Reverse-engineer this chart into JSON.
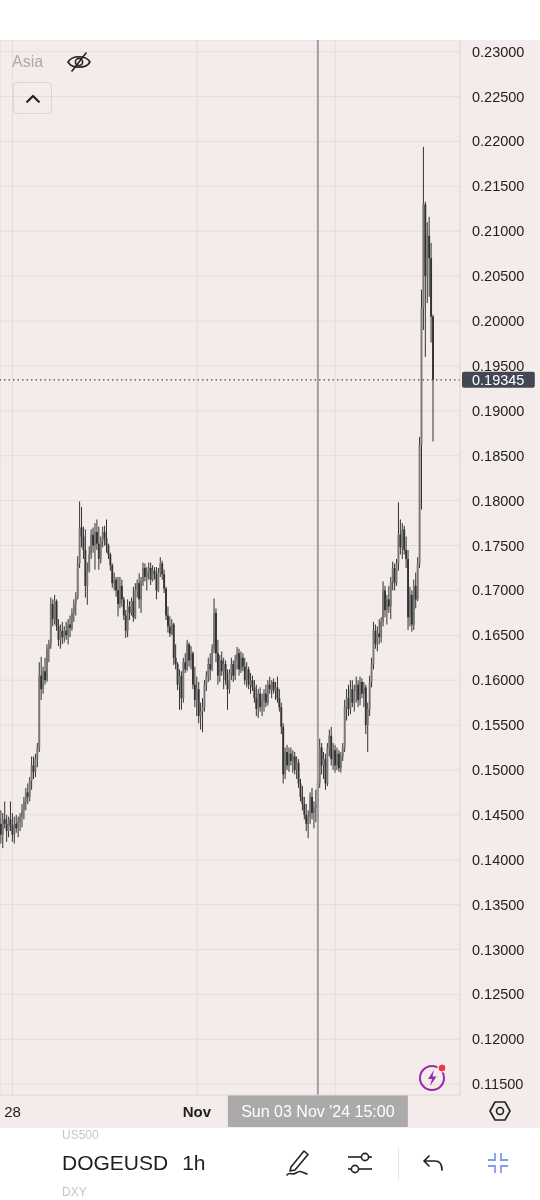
{
  "chart_data": {
    "type": "candlestick",
    "title": "DOGEUSD",
    "subtitle": "1h",
    "annotations": [
      "Asia",
      "US500",
      "DXY"
    ],
    "color": "#333333",
    "x": [
      "2024-10-27T18:00",
      "2024-10-27T19:00",
      "2024-10-27T20:00",
      "2024-10-27T21:00",
      "2024-10-27T22:00",
      "2024-10-27T23:00",
      "2024-10-28T00:00",
      "2024-10-28T01:00",
      "2024-10-28T02:00",
      "2024-10-28T03:00",
      "2024-10-28T04:00",
      "2024-10-28T05:00",
      "2024-10-28T06:00",
      "2024-10-28T07:00",
      "2024-10-28T08:00",
      "2024-10-28T09:00",
      "2024-10-28T10:00",
      "2024-10-28T11:00",
      "2024-10-28T12:00",
      "2024-10-28T13:00",
      "2024-10-28T14:00",
      "2024-10-28T15:00",
      "2024-10-28T16:00",
      "2024-10-28T17:00",
      "2024-10-28T18:00",
      "2024-10-28T19:00",
      "2024-10-28T20:00",
      "2024-10-28T21:00",
      "2024-10-28T22:00",
      "2024-10-28T23:00",
      "2024-10-29T00:00",
      "2024-10-29T01:00",
      "2024-10-29T02:00",
      "2024-10-29T03:00",
      "2024-10-29T04:00",
      "2024-10-29T05:00",
      "2024-10-29T06:00",
      "2024-10-29T07:00",
      "2024-10-29T08:00",
      "2024-10-29T09:00",
      "2024-10-29T10:00",
      "2024-10-29T11:00",
      "2024-10-29T12:00",
      "2024-10-29T13:00",
      "2024-10-29T14:00",
      "2024-10-29T15:00",
      "2024-10-29T16:00",
      "2024-10-29T17:00",
      "2024-10-29T18:00",
      "2024-10-29T19:00",
      "2024-10-29T20:00",
      "2024-10-29T21:00",
      "2024-10-29T22:00",
      "2024-10-29T23:00",
      "2024-10-30T00:00",
      "2024-10-30T01:00",
      "2024-10-30T02:00",
      "2024-10-30T03:00",
      "2024-10-30T04:00",
      "2024-10-30T05:00",
      "2024-10-30T06:00",
      "2024-10-30T07:00",
      "2024-10-30T08:00",
      "2024-10-30T09:00",
      "2024-10-30T10:00",
      "2024-10-30T11:00",
      "2024-10-30T12:00",
      "2024-10-30T13:00",
      "2024-10-30T14:00",
      "2024-10-30T15:00",
      "2024-10-30T16:00",
      "2024-10-30T17:00",
      "2024-10-30T18:00",
      "2024-10-30T19:00",
      "2024-10-30T20:00",
      "2024-10-30T21:00",
      "2024-10-30T22:00",
      "2024-10-30T23:00",
      "2024-10-31T00:00",
      "2024-10-31T01:00",
      "2024-10-31T02:00",
      "2024-10-31T03:00",
      "2024-10-31T04:00",
      "2024-10-31T05:00",
      "2024-10-31T06:00",
      "2024-10-31T07:00",
      "2024-10-31T08:00",
      "2024-10-31T09:00",
      "2024-10-31T10:00",
      "2024-10-31T11:00",
      "2024-10-31T12:00",
      "2024-10-31T13:00",
      "2024-10-31T14:00",
      "2024-10-31T15:00",
      "2024-10-31T16:00",
      "2024-10-31T17:00",
      "2024-10-31T18:00",
      "2024-10-31T19:00",
      "2024-10-31T20:00",
      "2024-10-31T21:00",
      "2024-10-31T22:00",
      "2024-10-31T23:00",
      "2024-11-01T00:00",
      "2024-11-01T01:00",
      "2024-11-01T02:00",
      "2024-11-01T03:00",
      "2024-11-01T04:00",
      "2024-11-01T05:00",
      "2024-11-01T06:00",
      "2024-11-01T07:00",
      "2024-11-01T08:00",
      "2024-11-01T09:00",
      "2024-11-01T10:00",
      "2024-11-01T11:00",
      "2024-11-01T12:00",
      "2024-11-01T13:00",
      "2024-11-01T14:00",
      "2024-11-01T15:00",
      "2024-11-01T16:00",
      "2024-11-01T17:00",
      "2024-11-01T18:00",
      "2024-11-01T19:00",
      "2024-11-01T20:00",
      "2024-11-01T21:00",
      "2024-11-01T22:00",
      "2024-11-01T23:00",
      "2024-11-02T00:00",
      "2024-11-02T01:00",
      "2024-11-02T02:00",
      "2024-11-02T03:00",
      "2024-11-02T04:00",
      "2024-11-02T05:00",
      "2024-11-02T06:00",
      "2024-11-02T07:00",
      "2024-11-02T08:00",
      "2024-11-02T09:00",
      "2024-11-02T10:00",
      "2024-11-02T11:00",
      "2024-11-02T12:00",
      "2024-11-02T13:00",
      "2024-11-02T14:00",
      "2024-11-02T15:00",
      "2024-11-02T16:00",
      "2024-11-02T17:00",
      "2024-11-02T18:00",
      "2024-11-02T19:00",
      "2024-11-02T20:00",
      "2024-11-02T21:00",
      "2024-11-02T22:00",
      "2024-11-02T23:00",
      "2024-11-03T00:00",
      "2024-11-03T01:00",
      "2024-11-03T02:00",
      "2024-11-03T03:00",
      "2024-11-03T04:00",
      "2024-11-03T05:00",
      "2024-11-03T06:00",
      "2024-11-03T07:00",
      "2024-11-03T08:00",
      "2024-11-03T09:00",
      "2024-11-03T10:00",
      "2024-11-03T11:00",
      "2024-11-03T12:00",
      "2024-11-03T13:00",
      "2024-11-03T14:00",
      "2024-11-03T15:00",
      "2024-11-03T16:00",
      "2024-11-03T17:00",
      "2024-11-03T18:00",
      "2024-11-03T19:00",
      "2024-11-03T20:00",
      "2024-11-03T21:00",
      "2024-11-03T22:00",
      "2024-11-03T23:00",
      "2024-11-04T00:00",
      "2024-11-04T01:00",
      "2024-11-04T02:00",
      "2024-11-04T03:00",
      "2024-11-04T04:00",
      "2024-11-04T05:00",
      "2024-11-04T06:00",
      "2024-11-04T07:00",
      "2024-11-04T08:00",
      "2024-11-04T09:00",
      "2024-11-04T10:00",
      "2024-11-04T11:00",
      "2024-11-04T12:00",
      "2024-11-04T13:00",
      "2024-11-04T14:00",
      "2024-11-04T15:00",
      "2024-11-04T16:00",
      "2024-11-04T17:00",
      "2024-11-04T18:00",
      "2024-11-04T19:00",
      "2024-11-04T20:00",
      "2024-11-04T21:00",
      "2024-11-04T22:00",
      "2024-11-04T23:00",
      "2024-11-05T00:00",
      "2024-11-05T01:00",
      "2024-11-05T02:00",
      "2024-11-05T03:00",
      "2024-11-05T04:00",
      "2024-11-05T05:00",
      "2024-11-05T06:00",
      "2024-11-05T07:00",
      "2024-11-05T08:00",
      "2024-11-05T09:00",
      "2024-11-05T10:00",
      "2024-11-05T11:00",
      "2024-11-05T12:00",
      "2024-11-05T13:00",
      "2024-11-05T14:00",
      "2024-11-05T15:00",
      "2024-11-05T16:00",
      "2024-11-05T17:00",
      "2024-11-05T18:00",
      "2024-11-05T19:00",
      "2024-11-05T20:00",
      "2024-11-05T21:00",
      "2024-11-05T22:00",
      "2024-11-05T23:00",
      "2024-11-06T00:00",
      "2024-11-06T01:00",
      "2024-11-06T02:00",
      "2024-11-06T03:00"
    ],
    "ohlc": [
      [
        0.144,
        0.1455,
        0.1418,
        0.1428
      ],
      [
        0.1428,
        0.1452,
        0.1413,
        0.1445
      ],
      [
        0.1445,
        0.1465,
        0.1435,
        0.144
      ],
      [
        0.144,
        0.145,
        0.142,
        0.1432
      ],
      [
        0.1432,
        0.1448,
        0.1425,
        0.1445
      ],
      [
        0.1445,
        0.1465,
        0.1432,
        0.1438
      ],
      [
        0.1438,
        0.1452,
        0.142,
        0.1428
      ],
      [
        0.1428,
        0.1448,
        0.1418,
        0.144
      ],
      [
        0.144,
        0.145,
        0.143,
        0.1435
      ],
      [
        0.1435,
        0.1448,
        0.1425,
        0.1442
      ],
      [
        0.1442,
        0.1452,
        0.1432,
        0.1448
      ],
      [
        0.1448,
        0.1462,
        0.1436,
        0.1455
      ],
      [
        0.1455,
        0.147,
        0.1445,
        0.1465
      ],
      [
        0.1465,
        0.148,
        0.1455,
        0.1475
      ],
      [
        0.1475,
        0.1485,
        0.1462,
        0.147
      ],
      [
        0.147,
        0.1492,
        0.1465,
        0.1488
      ],
      [
        0.1488,
        0.1515,
        0.1478,
        0.1505
      ],
      [
        0.1505,
        0.1515,
        0.149,
        0.1498
      ],
      [
        0.1498,
        0.1518,
        0.1492,
        0.1512
      ],
      [
        0.1512,
        0.153,
        0.1503,
        0.1525
      ],
      [
        0.1525,
        0.162,
        0.152,
        0.1605
      ],
      [
        0.1605,
        0.1626,
        0.1578,
        0.159
      ],
      [
        0.159,
        0.1615,
        0.1585,
        0.161
      ],
      [
        0.161,
        0.1625,
        0.1595,
        0.16
      ],
      [
        0.16,
        0.164,
        0.1598,
        0.1635
      ],
      [
        0.1635,
        0.1645,
        0.162,
        0.164
      ],
      [
        0.164,
        0.1692,
        0.1635,
        0.1685
      ],
      [
        0.1685,
        0.169,
        0.166,
        0.1668
      ],
      [
        0.1668,
        0.1695,
        0.1662,
        0.1688
      ],
      [
        0.1688,
        0.169,
        0.1655,
        0.166
      ],
      [
        0.166,
        0.1668,
        0.1638,
        0.1645
      ],
      [
        0.1645,
        0.1662,
        0.1635,
        0.1655
      ],
      [
        0.1655,
        0.1665,
        0.164,
        0.1648
      ],
      [
        0.1648,
        0.166,
        0.1642,
        0.1655
      ],
      [
        0.1655,
        0.1665,
        0.1645,
        0.165
      ],
      [
        0.165,
        0.1668,
        0.164,
        0.1662
      ],
      [
        0.1662,
        0.1672,
        0.1648,
        0.1658
      ],
      [
        0.1658,
        0.168,
        0.1655,
        0.1675
      ],
      [
        0.1675,
        0.169,
        0.1665,
        0.1685
      ],
      [
        0.1685,
        0.1698,
        0.1672,
        0.1692
      ],
      [
        0.1692,
        0.1738,
        0.169,
        0.173
      ],
      [
        0.173,
        0.1799,
        0.1725,
        0.177
      ],
      [
        0.177,
        0.1793,
        0.1748,
        0.176
      ],
      [
        0.176,
        0.1771,
        0.1735,
        0.1745
      ],
      [
        0.1745,
        0.1768,
        0.1692,
        0.1705
      ],
      [
        0.1705,
        0.1731,
        0.1684,
        0.1722
      ],
      [
        0.1722,
        0.1749,
        0.172,
        0.174
      ],
      [
        0.174,
        0.1768,
        0.1735,
        0.1762
      ],
      [
        0.1762,
        0.177,
        0.1742,
        0.175
      ],
      [
        0.175,
        0.1775,
        0.1723,
        0.1765
      ],
      [
        0.1765,
        0.1779,
        0.1745,
        0.1752
      ],
      [
        0.1752,
        0.1771,
        0.1723,
        0.1735
      ],
      [
        0.1735,
        0.176,
        0.173,
        0.1755
      ],
      [
        0.1755,
        0.1771,
        0.1748,
        0.1765
      ],
      [
        0.1765,
        0.1772,
        0.175,
        0.1758
      ],
      [
        0.1758,
        0.1779,
        0.1742,
        0.175
      ],
      [
        0.175,
        0.1752,
        0.1735,
        0.174
      ],
      [
        0.174,
        0.1742,
        0.1722,
        0.1728
      ],
      [
        0.1728,
        0.173,
        0.1703,
        0.1708
      ],
      [
        0.1708,
        0.172,
        0.17,
        0.1712
      ],
      [
        0.1712,
        0.1715,
        0.1693,
        0.17
      ],
      [
        0.17,
        0.1715,
        0.1671,
        0.1685
      ],
      [
        0.1685,
        0.1715,
        0.168,
        0.1705
      ],
      [
        0.1705,
        0.1712,
        0.1682,
        0.169
      ],
      [
        0.169,
        0.1693,
        0.1667,
        0.1672
      ],
      [
        0.1672,
        0.1678,
        0.1647,
        0.1655
      ],
      [
        0.1655,
        0.169,
        0.1648,
        0.1682
      ],
      [
        0.1682,
        0.1688,
        0.1667,
        0.1675
      ],
      [
        0.1675,
        0.1692,
        0.1672,
        0.1688
      ],
      [
        0.1688,
        0.1704,
        0.1665,
        0.167
      ],
      [
        0.167,
        0.1708,
        0.1668,
        0.17
      ],
      [
        0.17,
        0.1712,
        0.1692,
        0.1708
      ],
      [
        0.1708,
        0.1719,
        0.168,
        0.169
      ],
      [
        0.169,
        0.1715,
        0.1675,
        0.171
      ],
      [
        0.171,
        0.1731,
        0.1705,
        0.1725
      ],
      [
        0.1725,
        0.173,
        0.171,
        0.1715
      ],
      [
        0.1715,
        0.1726,
        0.17,
        0.172
      ],
      [
        0.172,
        0.1731,
        0.1712,
        0.1725
      ],
      [
        0.1725,
        0.1731,
        0.1706,
        0.1712
      ],
      [
        0.1712,
        0.1728,
        0.171,
        0.1722
      ],
      [
        0.1722,
        0.1726,
        0.1712,
        0.1718
      ],
      [
        0.1718,
        0.1726,
        0.169,
        0.17
      ],
      [
        0.17,
        0.1725,
        0.1698,
        0.172
      ],
      [
        0.172,
        0.1737,
        0.1715,
        0.173
      ],
      [
        0.173,
        0.1733,
        0.1712,
        0.1718
      ],
      [
        0.1718,
        0.1723,
        0.1697,
        0.1702
      ],
      [
        0.1702,
        0.1704,
        0.1667,
        0.1672
      ],
      [
        0.1672,
        0.1682,
        0.1653,
        0.166
      ],
      [
        0.166,
        0.1671,
        0.1648,
        0.1652
      ],
      [
        0.1652,
        0.1668,
        0.165,
        0.1662
      ],
      [
        0.1662,
        0.1664,
        0.1617,
        0.1625
      ],
      [
        0.1625,
        0.164,
        0.1612,
        0.1618
      ],
      [
        0.1618,
        0.162,
        0.1589,
        0.1595
      ],
      [
        0.1595,
        0.1612,
        0.1567,
        0.1605
      ],
      [
        0.1605,
        0.161,
        0.1567,
        0.158
      ],
      [
        0.158,
        0.1625,
        0.1575,
        0.162
      ],
      [
        0.162,
        0.163,
        0.1608,
        0.1612
      ],
      [
        0.1612,
        0.1645,
        0.161,
        0.164
      ],
      [
        0.164,
        0.1642,
        0.1615,
        0.1622
      ],
      [
        0.1622,
        0.1638,
        0.1612,
        0.163
      ],
      [
        0.163,
        0.1632,
        0.159,
        0.1595
      ],
      [
        0.1595,
        0.1615,
        0.157,
        0.1578
      ],
      [
        0.1578,
        0.1604,
        0.156,
        0.159
      ],
      [
        0.159,
        0.1598,
        0.1552,
        0.156
      ],
      [
        0.156,
        0.1575,
        0.1545,
        0.1565
      ],
      [
        0.1565,
        0.158,
        0.1542,
        0.157
      ],
      [
        0.157,
        0.16,
        0.1565,
        0.1595
      ],
      [
        0.1595,
        0.161,
        0.1588,
        0.1605
      ],
      [
        0.1605,
        0.1625,
        0.1598,
        0.1618
      ],
      [
        0.1618,
        0.163,
        0.16,
        0.1612
      ],
      [
        0.1612,
        0.164,
        0.161,
        0.1635
      ],
      [
        0.1635,
        0.1691,
        0.163,
        0.1675
      ],
      [
        0.1675,
        0.168,
        0.162,
        0.163
      ],
      [
        0.163,
        0.1645,
        0.1595,
        0.1605
      ],
      [
        0.1605,
        0.1628,
        0.1598,
        0.1622
      ],
      [
        0.1622,
        0.1632,
        0.1605,
        0.161
      ],
      [
        0.161,
        0.1625,
        0.159,
        0.1618
      ],
      [
        0.1618,
        0.1622,
        0.1595,
        0.16
      ],
      [
        0.16,
        0.1612,
        0.1567,
        0.159
      ],
      [
        0.159,
        0.1612,
        0.1585,
        0.1608
      ],
      [
        0.1608,
        0.1625,
        0.16,
        0.1618
      ],
      [
        0.1618,
        0.1622,
        0.1598,
        0.1605
      ],
      [
        0.1605,
        0.1628,
        0.16,
        0.1622
      ],
      [
        0.1622,
        0.1637,
        0.1612,
        0.163
      ],
      [
        0.163,
        0.1635,
        0.1605,
        0.1612
      ],
      [
        0.1612,
        0.1632,
        0.1608,
        0.1625
      ],
      [
        0.1625,
        0.163,
        0.161,
        0.1615
      ],
      [
        0.1615,
        0.1625,
        0.1595,
        0.16
      ],
      [
        0.16,
        0.162,
        0.1592,
        0.1612
      ],
      [
        0.1612,
        0.1615,
        0.159,
        0.1595
      ],
      [
        0.1595,
        0.1608,
        0.1585,
        0.16
      ],
      [
        0.16,
        0.1605,
        0.1588,
        0.1592
      ],
      [
        0.1592,
        0.16,
        0.1575,
        0.158
      ],
      [
        0.158,
        0.1595,
        0.156,
        0.1568
      ],
      [
        0.1568,
        0.159,
        0.1558,
        0.1585
      ],
      [
        0.1585,
        0.1592,
        0.1565,
        0.157
      ],
      [
        0.157,
        0.1585,
        0.156,
        0.1578
      ],
      [
        0.1578,
        0.159,
        0.1565,
        0.1585
      ],
      [
        0.1585,
        0.1595,
        0.157,
        0.1575
      ],
      [
        0.1575,
        0.16,
        0.1572,
        0.1595
      ],
      [
        0.1595,
        0.1604,
        0.1585,
        0.159
      ],
      [
        0.159,
        0.16,
        0.158,
        0.1598
      ],
      [
        0.1598,
        0.1602,
        0.1585,
        0.1588
      ],
      [
        0.1588,
        0.1598,
        0.1578,
        0.1592
      ],
      [
        0.1592,
        0.1604,
        0.1575,
        0.158
      ],
      [
        0.158,
        0.159,
        0.1565,
        0.157
      ],
      [
        0.157,
        0.1575,
        0.154,
        0.1548
      ],
      [
        0.1548,
        0.1552,
        0.1485,
        0.1495
      ],
      [
        0.1495,
        0.1525,
        0.149,
        0.152
      ],
      [
        0.152,
        0.1528,
        0.15,
        0.1505
      ],
      [
        0.1505,
        0.1525,
        0.1498,
        0.1518
      ],
      [
        0.1518,
        0.1525,
        0.1505,
        0.151
      ],
      [
        0.151,
        0.1522,
        0.1497,
        0.1515
      ],
      [
        0.1515,
        0.152,
        0.1495,
        0.15
      ],
      [
        0.15,
        0.1515,
        0.149,
        0.1508
      ],
      [
        0.1508,
        0.1512,
        0.148,
        0.1485
      ],
      [
        0.1485,
        0.149,
        0.1465,
        0.147
      ],
      [
        0.147,
        0.1482,
        0.1455,
        0.1462
      ],
      [
        0.1462,
        0.147,
        0.1445,
        0.145
      ],
      [
        0.145,
        0.1462,
        0.1432,
        0.144
      ],
      [
        0.144,
        0.1455,
        0.1424,
        0.1448
      ],
      [
        0.1448,
        0.1475,
        0.144,
        0.147
      ],
      [
        0.147,
        0.148,
        0.1445,
        0.1452
      ],
      [
        0.1452,
        0.1465,
        0.1435,
        0.1458
      ],
      [
        0.1458,
        0.1478,
        0.1442,
        0.1462
      ],
      [
        0.1462,
        0.149,
        0.1445,
        0.1485
      ],
      [
        0.1485,
        0.1535,
        0.148,
        0.1525
      ],
      [
        0.1525,
        0.153,
        0.1495,
        0.1505
      ],
      [
        0.1505,
        0.152,
        0.149,
        0.1512
      ],
      [
        0.1512,
        0.1518,
        0.1478,
        0.1485
      ],
      [
        0.1485,
        0.153,
        0.1482,
        0.1525
      ],
      [
        0.1525,
        0.1545,
        0.1515,
        0.1538
      ],
      [
        0.1538,
        0.1548,
        0.1505,
        0.1512
      ],
      [
        0.1512,
        0.153,
        0.15,
        0.1522
      ],
      [
        0.1522,
        0.1528,
        0.1497,
        0.1505
      ],
      [
        0.1505,
        0.1525,
        0.15,
        0.1518
      ],
      [
        0.1518,
        0.1522,
        0.1498,
        0.1502
      ],
      [
        0.1502,
        0.152,
        0.1497,
        0.1515
      ],
      [
        0.1515,
        0.153,
        0.151,
        0.1525
      ],
      [
        0.1525,
        0.1578,
        0.152,
        0.157
      ],
      [
        0.157,
        0.159,
        0.1555,
        0.158
      ],
      [
        0.158,
        0.1595,
        0.156,
        0.1568
      ],
      [
        0.1568,
        0.16,
        0.1562,
        0.159
      ],
      [
        0.159,
        0.16,
        0.157,
        0.1575
      ],
      [
        0.1575,
        0.1595,
        0.1565,
        0.1588
      ],
      [
        0.1588,
        0.1604,
        0.1575,
        0.1595
      ],
      [
        0.1595,
        0.16,
        0.157,
        0.1578
      ],
      [
        0.1578,
        0.1604,
        0.1572,
        0.1598
      ],
      [
        0.1598,
        0.1602,
        0.158,
        0.1585
      ],
      [
        0.1585,
        0.1598,
        0.157,
        0.1592
      ],
      [
        0.1592,
        0.1595,
        0.154,
        0.155
      ],
      [
        0.155,
        0.1575,
        0.152,
        0.1568
      ],
      [
        0.1568,
        0.1605,
        0.156,
        0.1598
      ],
      [
        0.1598,
        0.1625,
        0.1592,
        0.1618
      ],
      [
        0.1618,
        0.1665,
        0.1612,
        0.1655
      ],
      [
        0.1655,
        0.1662,
        0.1635,
        0.164
      ],
      [
        0.164,
        0.166,
        0.1632,
        0.1652
      ],
      [
        0.1652,
        0.1668,
        0.164,
        0.1648
      ],
      [
        0.1648,
        0.167,
        0.1642,
        0.1665
      ],
      [
        0.1665,
        0.171,
        0.166,
        0.17
      ],
      [
        0.17,
        0.1705,
        0.167,
        0.1678
      ],
      [
        0.1678,
        0.1695,
        0.1662,
        0.169
      ],
      [
        0.169,
        0.1705,
        0.1675,
        0.1682
      ],
      [
        0.1682,
        0.1715,
        0.1668,
        0.171
      ],
      [
        0.171,
        0.1732,
        0.17,
        0.1725
      ],
      [
        0.1725,
        0.173,
        0.17,
        0.1708
      ],
      [
        0.1708,
        0.1735,
        0.1705,
        0.173
      ],
      [
        0.173,
        0.1798,
        0.1722,
        0.1762
      ],
      [
        0.1762,
        0.1779,
        0.174,
        0.1748
      ],
      [
        0.1748,
        0.1775,
        0.1735,
        0.1768
      ],
      [
        0.1768,
        0.1772,
        0.174,
        0.1745
      ],
      [
        0.1745,
        0.176,
        0.1725,
        0.1735
      ],
      [
        0.1735,
        0.1745,
        0.1656,
        0.167
      ],
      [
        0.167,
        0.1704,
        0.166,
        0.1695
      ],
      [
        0.1695,
        0.17,
        0.1654,
        0.1662
      ],
      [
        0.1662,
        0.1712,
        0.1656,
        0.1705
      ],
      [
        0.1705,
        0.172,
        0.168,
        0.169
      ],
      [
        0.169,
        0.1737,
        0.1688,
        0.173
      ],
      [
        0.173,
        0.1871,
        0.1725,
        0.1862
      ],
      [
        0.1862,
        0.2035,
        0.179,
        0.2015
      ],
      [
        0.2015,
        0.2194,
        0.199,
        0.213
      ],
      [
        0.213,
        0.2133,
        0.196,
        0.205
      ],
      [
        0.205,
        0.211,
        0.202,
        0.2095
      ],
      [
        0.2095,
        0.2116,
        0.2027,
        0.207
      ],
      [
        0.207,
        0.2087,
        0.1976,
        0.2005
      ],
      [
        0.2005,
        0.2007,
        0.1866,
        0.19345
      ]
    ],
    "colors": [
      "#333333",
      "#777777",
      "#333333",
      "#333333",
      "#777777",
      "#333333",
      "#333333",
      "#777777",
      "#333333",
      "#777777",
      "#777777",
      "#777777",
      "#777777",
      "#777777",
      "#333333",
      "#777777",
      "#777777",
      "#333333",
      "#777777",
      "#777777",
      "#777777",
      "#333333",
      "#777777",
      "#333333",
      "#777777",
      "#777777",
      "#777777",
      "#333333",
      "#777777",
      "#333333",
      "#333333",
      "#777777",
      "#333333",
      "#777777",
      "#333333",
      "#777777",
      "#333333",
      "#777777",
      "#777777",
      "#777777",
      "#777777",
      "#777777",
      "#333333",
      "#333333",
      "#333333",
      "#777777",
      "#777777",
      "#777777",
      "#333333",
      "#777777",
      "#333333",
      "#333333",
      "#777777",
      "#777777",
      "#333333",
      "#333333",
      "#333333",
      "#333333",
      "#333333",
      "#777777",
      "#333333",
      "#333333",
      "#777777",
      "#333333",
      "#333333",
      "#333333",
      "#777777",
      "#333333",
      "#777777",
      "#333333",
      "#777777",
      "#777777",
      "#333333",
      "#777777",
      "#777777",
      "#333333",
      "#777777",
      "#777777",
      "#333333",
      "#777777",
      "#333333",
      "#333333",
      "#777777",
      "#777777",
      "#333333",
      "#333333",
      "#333333",
      "#333333",
      "#333333",
      "#777777",
      "#333333",
      "#333333",
      "#333333",
      "#777777",
      "#333333",
      "#777777",
      "#333333",
      "#777777",
      "#333333",
      "#777777",
      "#333333",
      "#333333",
      "#777777",
      "#333333",
      "#777777",
      "#777777",
      "#777777",
      "#777777",
      "#777777",
      "#333333",
      "#777777",
      "#777777",
      "#333333",
      "#333333",
      "#777777",
      "#333333",
      "#777777",
      "#333333",
      "#333333",
      "#777777",
      "#777777",
      "#333333",
      "#777777",
      "#777777",
      "#333333",
      "#777777",
      "#333333",
      "#333333",
      "#777777",
      "#333333",
      "#777777",
      "#333333",
      "#333333",
      "#333333",
      "#777777",
      "#333333",
      "#777777",
      "#777777",
      "#333333",
      "#777777",
      "#333333",
      "#777777",
      "#333333",
      "#777777",
      "#333333",
      "#333333",
      "#333333",
      "#333333",
      "#777777",
      "#333333",
      "#777777",
      "#333333",
      "#777777",
      "#333333",
      "#777777",
      "#333333",
      "#333333",
      "#333333",
      "#333333",
      "#333333",
      "#777777",
      "#777777",
      "#333333",
      "#777777",
      "#777777",
      "#777777",
      "#777777",
      "#333333",
      "#777777",
      "#333333",
      "#777777",
      "#777777",
      "#333333",
      "#777777",
      "#333333",
      "#777777",
      "#333333",
      "#777777",
      "#777777",
      "#777777",
      "#777777",
      "#333333",
      "#777777",
      "#333333",
      "#777777",
      "#777777",
      "#333333",
      "#777777",
      "#333333",
      "#777777",
      "#333333",
      "#777777",
      "#777777",
      "#777777",
      "#777777",
      "#333333",
      "#777777",
      "#333333",
      "#777777",
      "#777777",
      "#333333",
      "#777777",
      "#333333",
      "#777777",
      "#777777",
      "#333333",
      "#777777",
      "#777777",
      "#333333",
      "#777777",
      "#333333",
      "#333333",
      "#333333",
      "#777777",
      "#333333",
      "#777777",
      "#333333",
      "#777777",
      "#777777",
      "#777777",
      "#777777",
      "#333333",
      "#777777",
      "#333333",
      "#333333",
      "#333333"
    ],
    "xlim": [
      "2024-10-27T17:30",
      "2024-11-06T17:00"
    ],
    "ylim": [
      0.1138,
      0.2313
    ],
    "xticks": [
      {
        "value": "2024-10-28",
        "label": "28"
      },
      {
        "value": "2024-11-01",
        "label": "Nov"
      },
      {
        "value": "2024-11-04",
        "label": null
      }
    ],
    "yticks": [
      {
        "value": 0.115,
        "label": "0.11500"
      },
      {
        "value": 0.12,
        "label": "0.12000"
      },
      {
        "value": 0.125,
        "label": "0.12500"
      },
      {
        "value": 0.13,
        "label": "0.13000"
      },
      {
        "value": 0.135,
        "label": "0.13500"
      },
      {
        "value": 0.14,
        "label": "0.14000"
      },
      {
        "value": 0.145,
        "label": "0.14500"
      },
      {
        "value": 0.15,
        "label": "0.15000"
      },
      {
        "value": 0.155,
        "label": "0.15500"
      },
      {
        "value": 0.16,
        "label": "0.16000"
      },
      {
        "value": 0.165,
        "label": "0.16500"
      },
      {
        "value": 0.17,
        "label": "0.17000"
      },
      {
        "value": 0.175,
        "label": "0.17500"
      },
      {
        "value": 0.18,
        "label": "0.18000"
      },
      {
        "value": 0.185,
        "label": "0.18500"
      },
      {
        "value": 0.19,
        "label": "0.19000"
      },
      {
        "value": 0.195,
        "label": "0.19500"
      },
      {
        "value": 0.2,
        "label": "0.20000"
      },
      {
        "value": 0.205,
        "label": "0.20500"
      },
      {
        "value": 0.21,
        "label": "0.21000"
      },
      {
        "value": 0.215,
        "label": "0.21500"
      },
      {
        "value": 0.22,
        "label": "0.22000"
      },
      {
        "value": 0.225,
        "label": "0.22500"
      },
      {
        "value": 0.23,
        "label": "0.23000"
      }
    ],
    "grid": true,
    "ref_lines": [
      {
        "axis": "x",
        "value": "2024-11-03T15:00",
        "label": "Sun 03 Nov '24 15:00",
        "color": "#9e9e9e"
      },
      {
        "axis": "y",
        "value": 0.19345,
        "label": "0.19345",
        "color": "#434753",
        "line_style": "dotted"
      }
    ]
  }
}
